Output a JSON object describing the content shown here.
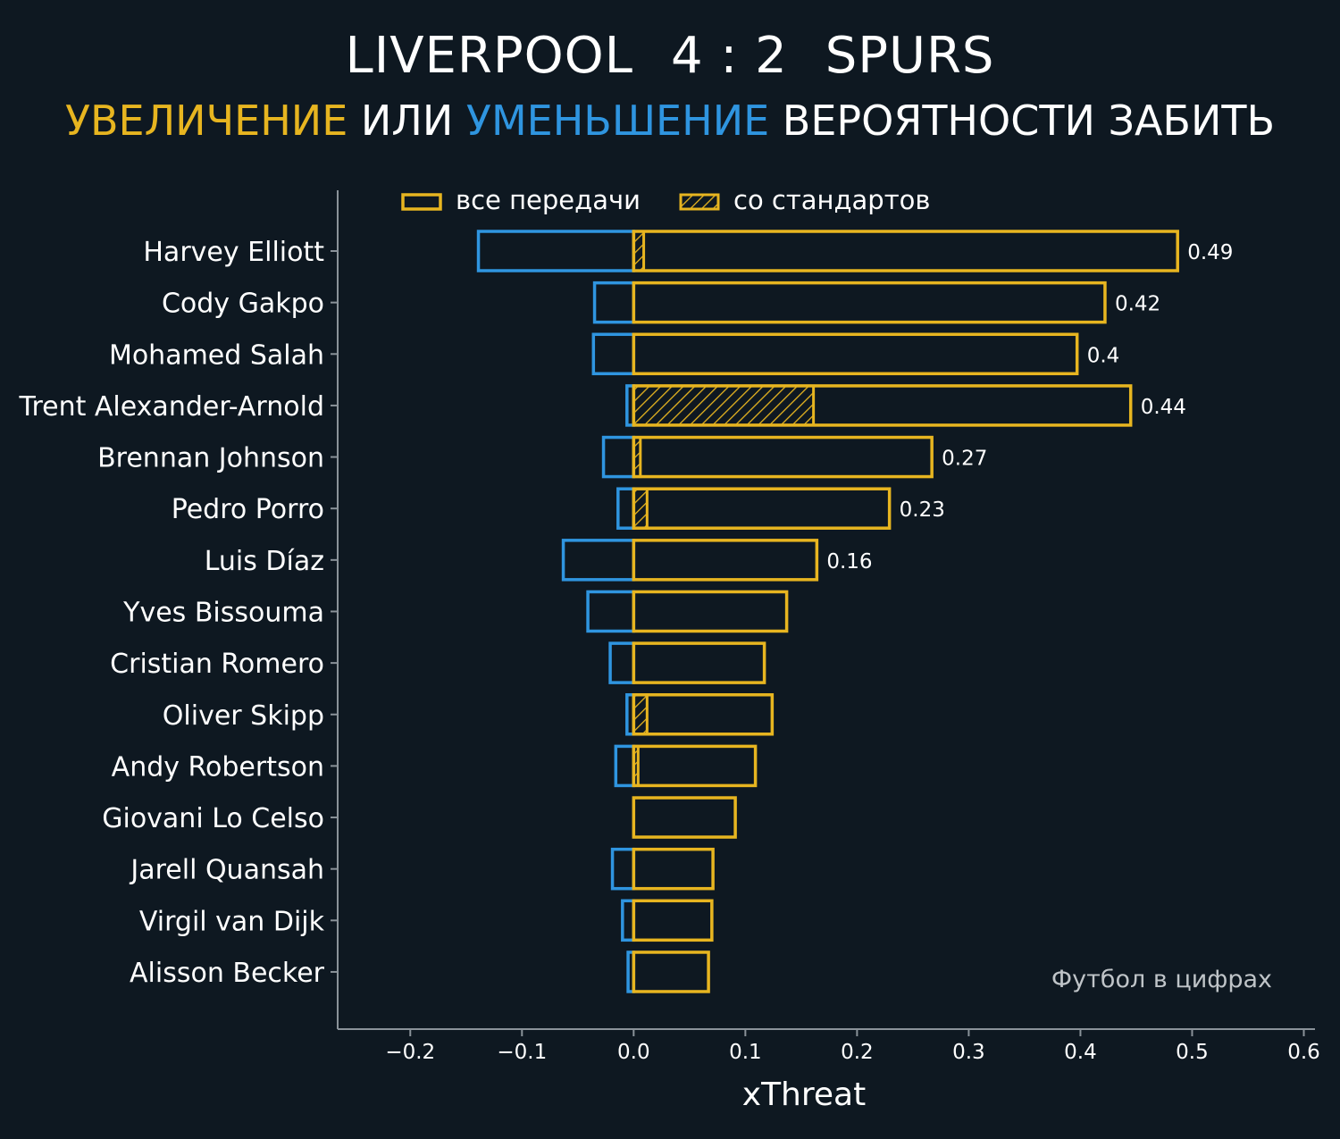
{
  "header": {
    "team_home": "LIVERPOOL",
    "score": "4 : 2",
    "team_away": "SPURS",
    "subtitle_increase": "УВЕЛИЧЕНИЕ",
    "subtitle_or": " ИЛИ ",
    "subtitle_decrease": "УМЕНЬШЕНИЕ",
    "subtitle_rest": " ВЕРОЯТНОСТИ ЗАБИТЬ"
  },
  "watermark": "Футбол в цифрах",
  "colors": {
    "background": "#0e1821",
    "increase": "#e7b520",
    "decrease": "#2f95e0",
    "axis": "#8a9299"
  },
  "chart_data": {
    "type": "bar",
    "orientation": "horizontal",
    "xlabel": "xThreat",
    "xlim": [
      -0.265,
      0.61
    ],
    "xticks": [
      -0.2,
      -0.1,
      0.0,
      0.1,
      0.2,
      0.3,
      0.4,
      0.5,
      0.6
    ],
    "xtick_labels": [
      "−0.2",
      "−0.1",
      "0.0",
      "0.1",
      "0.2",
      "0.3",
      "0.4",
      "0.5",
      "0.6"
    ],
    "legend": {
      "placement": "top",
      "entries": [
        {
          "label": "все передачи",
          "style": "outline"
        },
        {
          "label": "со стандартов",
          "style": "hatched"
        }
      ]
    },
    "categories": [
      "Harvey Elliott",
      "Cody Gakpo",
      "Mohamed Salah",
      "Trent Alexander-Arnold",
      "Brennan Johnson",
      "Pedro Porro",
      "Luis Díaz",
      "Yves Bissouma",
      "Cristian Romero",
      "Oliver Skipp",
      "Andy Robertson",
      "Giovani Lo Celso",
      "Jarell Quansah",
      "Virgil van Dijk",
      "Alisson Becker"
    ],
    "series": [
      {
        "name": "все передачи",
        "values": [
          0.487,
          0.422,
          0.397,
          0.445,
          0.267,
          0.229,
          0.164,
          0.137,
          0.117,
          0.124,
          0.109,
          0.091,
          0.071,
          0.07,
          0.067
        ]
      },
      {
        "values": [
          -0.139,
          -0.035,
          -0.036,
          -0.006,
          -0.027,
          -0.014,
          -0.063,
          -0.041,
          -0.021,
          -0.006,
          -0.016,
          0.0,
          -0.019,
          -0.01,
          -0.005
        ]
      },
      {
        "name": "со стандартов",
        "values": [
          0.009,
          0.0,
          0.0,
          0.161,
          0.006,
          0.012,
          0.0,
          0.0,
          0.0,
          0.012,
          0.004,
          0.0,
          0.0,
          0.0,
          0.0
        ]
      }
    ],
    "value_labels": [
      "0.49",
      "0.42",
      "0.4",
      "0.44",
      "0.27",
      "0.23",
      "0.16",
      "",
      "",
      "",
      "",
      "",
      "",
      "",
      ""
    ]
  }
}
